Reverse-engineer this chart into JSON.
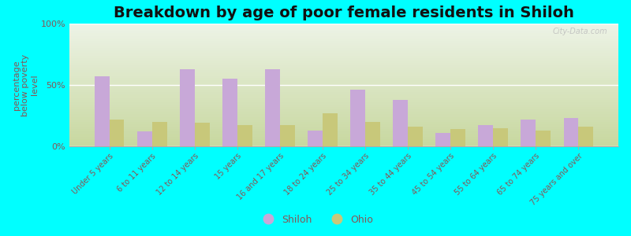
{
  "title": "Breakdown by age of poor female residents in Shiloh",
  "ylabel": "percentage\nbelow poverty\nlevel",
  "categories": [
    "Under 5 years",
    "6 to 11 years",
    "12 to 14 years",
    "15 years",
    "16 and 17 years",
    "18 to 24 years",
    "25 to 34 years",
    "35 to 44 years",
    "45 to 54 years",
    "55 to 64 years",
    "65 to 74 years",
    "75 years and over"
  ],
  "shiloh_values": [
    57,
    12,
    63,
    55,
    63,
    13,
    46,
    38,
    11,
    17,
    22,
    23
  ],
  "ohio_values": [
    22,
    20,
    19,
    17,
    17,
    27,
    20,
    16,
    14,
    15,
    13,
    16
  ],
  "shiloh_color": "#c8a8d8",
  "ohio_color": "#c8c87a",
  "background_bottom": "#c8d8a0",
  "background_top": "#eef4e8",
  "background_fig": "#00ffff",
  "ylim": [
    0,
    100
  ],
  "yticks": [
    0,
    50,
    100
  ],
  "ytick_labels": [
    "0%",
    "50%",
    "100%"
  ],
  "legend_shiloh": "Shiloh",
  "legend_ohio": "Ohio",
  "title_fontsize": 14,
  "axis_label_fontsize": 8,
  "tick_fontsize": 8,
  "legend_fontsize": 9,
  "watermark": "City-Data.com"
}
